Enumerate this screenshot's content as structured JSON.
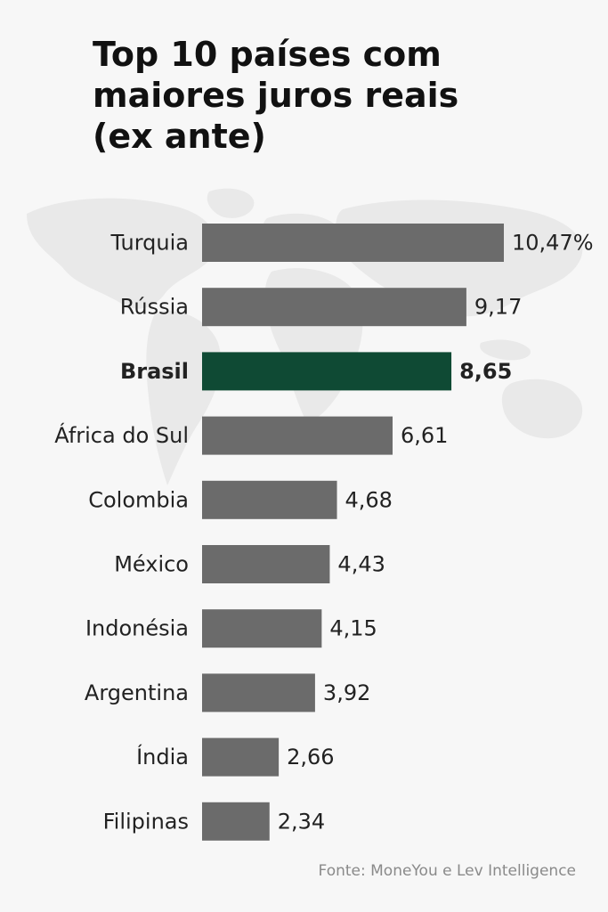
{
  "title": "Top 10 países com maiores juros reais (ex ante)",
  "source": "Fonte: MoneYou e Lev Intelligence",
  "colors": {
    "bar": "#6b6b6b",
    "highlight": "#0f4a34",
    "text": "#222222",
    "background": "#f7f7f7"
  },
  "chart_data": {
    "type": "bar",
    "orientation": "horizontal",
    "title": "Top 10 países com maiores juros reais (ex ante)",
    "categories": [
      "Turquia",
      "Rússia",
      "Brasil",
      "África do Sul",
      "Colombia",
      "México",
      "Indonésia",
      "Argentina",
      "Índia",
      "Filipinas"
    ],
    "values": [
      10.47,
      9.17,
      8.65,
      6.61,
      4.68,
      4.43,
      4.15,
      3.92,
      2.66,
      2.34
    ],
    "value_labels": [
      "10,47%",
      "9,17",
      "8,65",
      "6,61",
      "4,68",
      "4,43",
      "4,15",
      "3,92",
      "2,66",
      "2,34"
    ],
    "highlight": "Brasil",
    "xlabel": "",
    "ylabel": "",
    "grid": false,
    "legend": "none"
  }
}
